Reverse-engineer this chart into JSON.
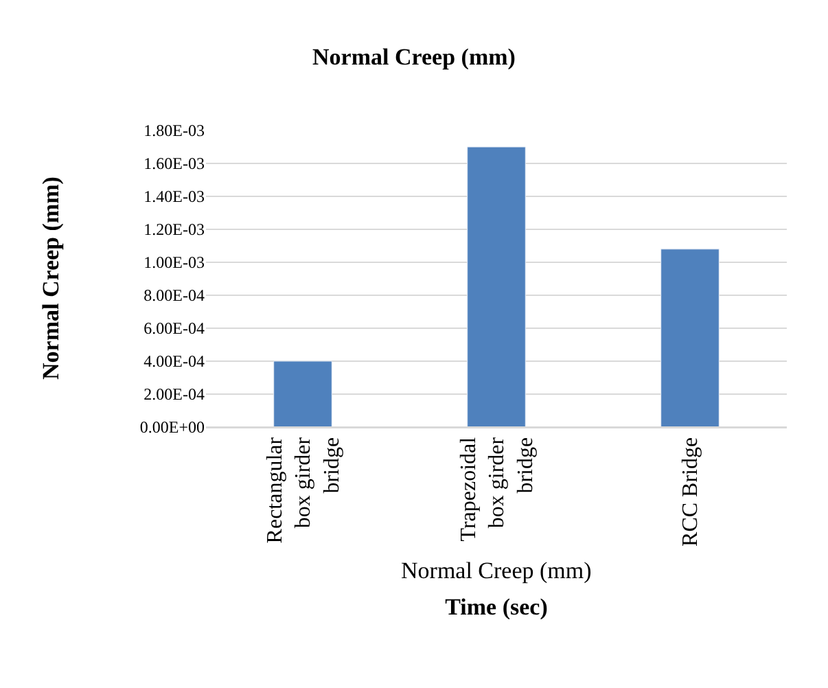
{
  "chart_data": {
    "type": "bar",
    "title": "Normal Creep (mm)",
    "xlabel": "Time (sec)",
    "ylabel": "Normal Creep (mm)",
    "categories": [
      "Rectangular box girder bridge",
      "Trapezoidal box girder bridge",
      "RCC Bridge"
    ],
    "values": [
      0.0004,
      0.0017,
      0.00108
    ],
    "color": "#4f81bd",
    "annotations": [
      "Normal Creep (mm)"
    ],
    "ylim": [
      0,
      0.0018
    ],
    "yticks": [
      {
        "value": 0,
        "label": "0.00E+00"
      },
      {
        "value": 0.0002,
        "label": "2.00E-04"
      },
      {
        "value": 0.0004,
        "label": "4.00E-04"
      },
      {
        "value": 0.0006,
        "label": "6.00E-04"
      },
      {
        "value": 0.0008,
        "label": "8.00E-04"
      },
      {
        "value": 0.001,
        "label": "1.00E-03"
      },
      {
        "value": 0.0012,
        "label": "1.20E-03"
      },
      {
        "value": 0.0014,
        "label": "1.40E-03"
      },
      {
        "value": 0.0016,
        "label": "1.60E-03"
      },
      {
        "value": 0.0018,
        "label": "1.80E-03"
      }
    ],
    "grid": "y",
    "legend": false
  }
}
